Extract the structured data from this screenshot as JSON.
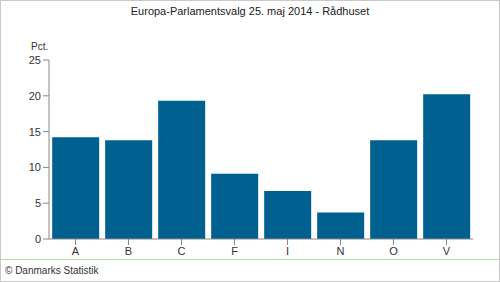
{
  "chart_data": {
    "type": "bar",
    "title": "Europa-Parlamentsvalg 25. maj 2014 - Rådhuset",
    "y_label": "Pct.",
    "source": "© Danmarks Statistik",
    "categories": [
      "A",
      "B",
      "C",
      "F",
      "I",
      "N",
      "O",
      "V"
    ],
    "values": [
      14.2,
      13.8,
      19.3,
      9.1,
      6.7,
      3.7,
      13.8,
      20.2
    ],
    "color": "#00608f",
    "ylim": [
      0,
      25
    ],
    "yticks": [
      0,
      5,
      10,
      15,
      20,
      25
    ],
    "grid": false
  }
}
